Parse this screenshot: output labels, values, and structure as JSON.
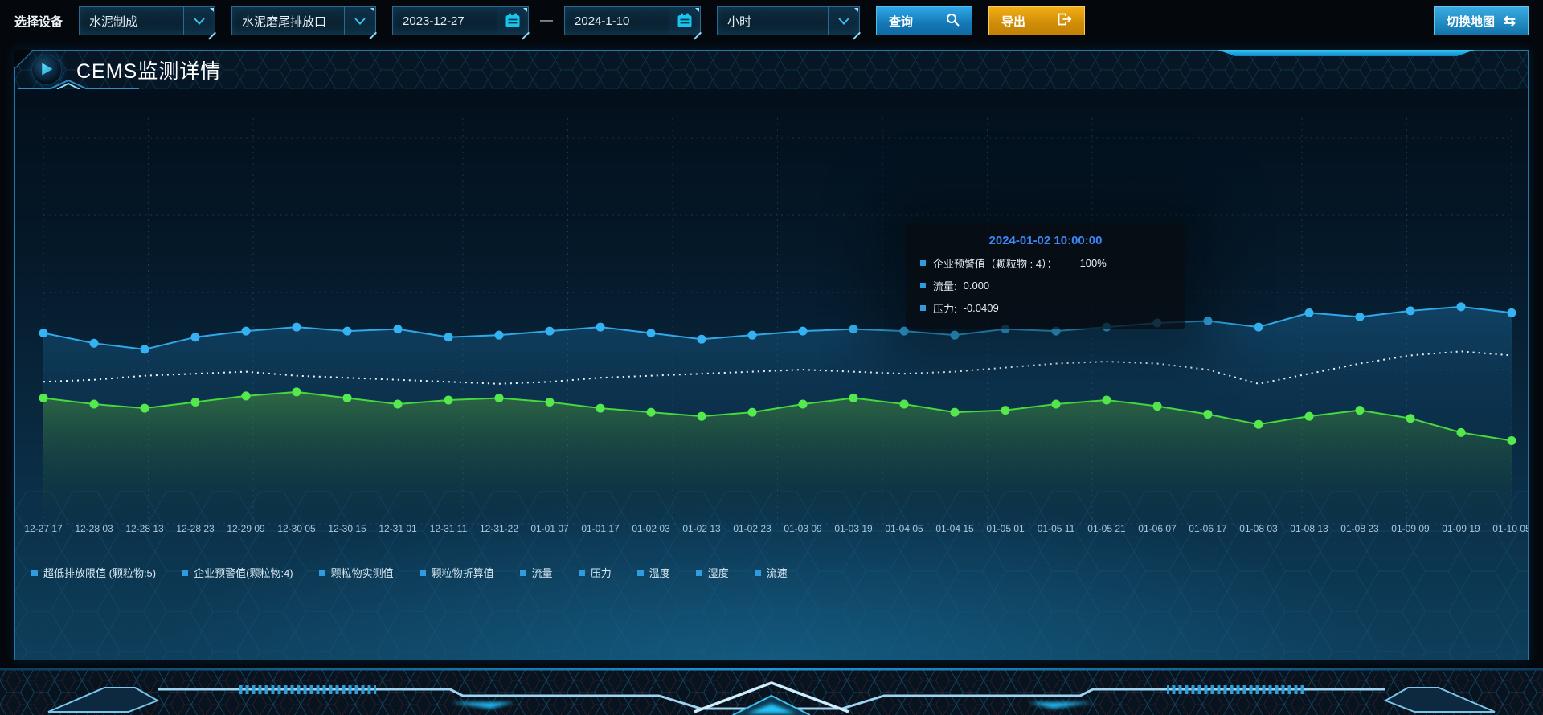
{
  "toolbar": {
    "device_label": "选择设备",
    "selects": [
      {
        "value": "水泥制成"
      },
      {
        "value": "水泥磨尾排放口"
      }
    ],
    "date_start": "2023-12-27",
    "date_separator": "—",
    "date_end": "2024-1-10",
    "interval": {
      "value": "小时"
    },
    "query_label": "查询",
    "export_label": "导出",
    "switch_map_label": "切换地图",
    "switch_map_icon": "⇆"
  },
  "panel": {
    "title": "CEMS监测详情"
  },
  "tooltip": {
    "title": "2024-01-02 10:00:00",
    "rows": [
      {
        "label": "企业预警值（颗粒物 : 4）：",
        "value": "100%"
      },
      {
        "label": "流量:",
        "value": "0.000"
      },
      {
        "label": "压力:",
        "value": "-0.0409"
      }
    ]
  },
  "legend": {
    "items": [
      "超低排放限值 (颗粒物:5)",
      "企业预警值(颗粒物:4)",
      "颗粒物实测值",
      "颗粒物折算值",
      "流量",
      "压力",
      "温度",
      "湿度",
      "流速"
    ]
  },
  "colors": {
    "accent_blue": "#2fa8ea",
    "accent_green": "#45d93d",
    "accent_orange": "#e8a40f",
    "tooltip_title": "#3e86f5",
    "legend_marker": "#2f9be0"
  },
  "chart_data": {
    "type": "line",
    "title": "",
    "xlabel": "",
    "ylabel": "",
    "ylim": [
      0,
      100
    ],
    "grid": true,
    "legend_position": "bottom",
    "categories": [
      "12-27 17",
      "12-28 03",
      "12-28 13",
      "12-28 23",
      "12-29 09",
      "12-30 05",
      "12-30 15",
      "12-31 01",
      "12-31 11",
      "12-31-22",
      "01-01 07",
      "01-01 17",
      "01-02 03",
      "01-02 13",
      "01-02 23",
      "01-03 09",
      "01-03 19",
      "01-04 05",
      "01-04 15",
      "01-05 01",
      "01-05 11",
      "01-05 21",
      "01-06 07",
      "01-06 17",
      "01-08 03",
      "01-08 13",
      "01-08 23",
      "01-09 09",
      "01-09 19",
      "01-10 05"
    ],
    "series": [
      {
        "name": "企业预警值(颗粒物:4)",
        "color": "#2fa8ea",
        "marker_color": "#35b2f2",
        "line_style": "solid",
        "markers": true,
        "area": true,
        "area_from": "rgba(30,115,170,0.42)",
        "area_to": "rgba(8,40,66,0.03)",
        "values": [
          47,
          44.5,
          43,
          46,
          47.5,
          48.5,
          47.5,
          48,
          46,
          46.5,
          47.5,
          48.5,
          47,
          45.5,
          46.5,
          47.5,
          48,
          47.5,
          46.5,
          48,
          47.5,
          48.5,
          49.5,
          50,
          48.5,
          52,
          51,
          52.5,
          53.5,
          52
        ]
      },
      {
        "name": "颗粒物折算值",
        "color": "#eef6fb",
        "marker_color": "#ffffff",
        "line_style": "dotted",
        "markers": false,
        "area": false,
        "area_from": "",
        "area_to": "",
        "values": [
          35,
          35.5,
          36.5,
          37,
          37.5,
          36.5,
          36,
          35.5,
          35,
          34.5,
          35,
          36,
          36.5,
          37,
          37.5,
          38,
          37.5,
          37,
          37.5,
          38.5,
          39.5,
          40,
          39.5,
          38,
          34.5,
          37,
          39.5,
          41.5,
          42.5,
          41.5
        ]
      },
      {
        "name": "颗粒物实测值",
        "color": "#45d93d",
        "marker_color": "#55e94d",
        "line_style": "solid",
        "markers": true,
        "area": true,
        "area_from": "rgba(95,185,55,0.40)",
        "area_to": "rgba(25,70,40,0.02)",
        "values": [
          31,
          29.5,
          28.5,
          30,
          31.5,
          32.5,
          31,
          29.5,
          30.5,
          31,
          30,
          28.5,
          27.5,
          26.5,
          27.5,
          29.5,
          31,
          29.5,
          27.5,
          28,
          29.5,
          30.5,
          29,
          27,
          24.5,
          26.5,
          28,
          26,
          22.5,
          20.5
        ]
      }
    ]
  }
}
